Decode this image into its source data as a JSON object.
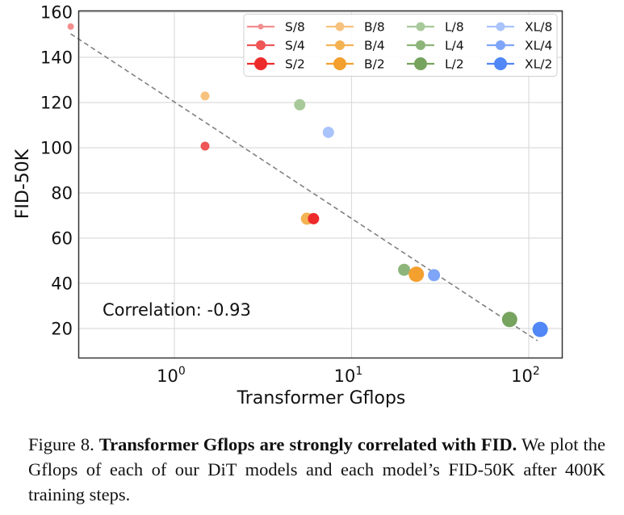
{
  "chart_data": {
    "type": "scatter",
    "title": "",
    "xlabel": "Transformer Gflops",
    "ylabel": "FID-50K",
    "xscale": "log",
    "xlim": [
      0.25,
      140
    ],
    "ylim": [
      6,
      160
    ],
    "x_ticks": [
      {
        "value": 1,
        "base": "10",
        "exp": "0"
      },
      {
        "value": 10,
        "base": "10",
        "exp": "1"
      },
      {
        "value": 100,
        "base": "10",
        "exp": "2"
      }
    ],
    "y_ticks": [
      20,
      40,
      60,
      80,
      100,
      120,
      140,
      160
    ],
    "grid": true,
    "legend_position": "top-right",
    "legend_columns": 4,
    "series": [
      {
        "name": "S/8",
        "color": "#f28e8e",
        "size": "small",
        "x": 0.26,
        "y": 153.6
      },
      {
        "name": "S/4",
        "color": "#ee5555",
        "size": "medium",
        "x": 1.49,
        "y": 100.7
      },
      {
        "name": "S/2",
        "color": "#ee2b2b",
        "size": "large",
        "x": 6.1,
        "y": 68.6
      },
      {
        "name": "B/8",
        "color": "#f7c27e",
        "size": "small",
        "x": 1.49,
        "y": 122.9
      },
      {
        "name": "B/4",
        "color": "#f4b352",
        "size": "medium",
        "x": 5.6,
        "y": 68.6
      },
      {
        "name": "B/2",
        "color": "#f3a02e",
        "size": "large",
        "x": 23.2,
        "y": 44.0
      },
      {
        "name": "L/8",
        "color": "#a8c99a",
        "size": "small",
        "x": 5.1,
        "y": 119.0
      },
      {
        "name": "L/4",
        "color": "#8db57a",
        "size": "medium",
        "x": 19.8,
        "y": 46.0
      },
      {
        "name": "L/2",
        "color": "#76a35e",
        "size": "large",
        "x": 78,
        "y": 24.0
      },
      {
        "name": "XL/8",
        "color": "#a9c3fb",
        "size": "small",
        "x": 7.4,
        "y": 106.8
      },
      {
        "name": "XL/4",
        "color": "#7ea5f8",
        "size": "medium",
        "x": 29.2,
        "y": 43.6
      },
      {
        "name": "XL/2",
        "color": "#5187f6",
        "size": "large",
        "x": 116,
        "y": 19.6
      }
    ],
    "trendline": {
      "style": "dashed",
      "color": "#808080",
      "points": [
        {
          "x": 0.26,
          "y": 150.4
        },
        {
          "x": 112,
          "y": 14.6
        }
      ]
    },
    "annotations": [
      {
        "text": "Correlation: -0.93",
        "position": "bottom-left"
      }
    ]
  },
  "caption": {
    "label": "Figure 8.",
    "bold": "Transformer Gflops are strongly correlated with FID.",
    "text": "We plot the Gflops of each of our DiT models and each model’s FID-50K after 400K training steps."
  }
}
